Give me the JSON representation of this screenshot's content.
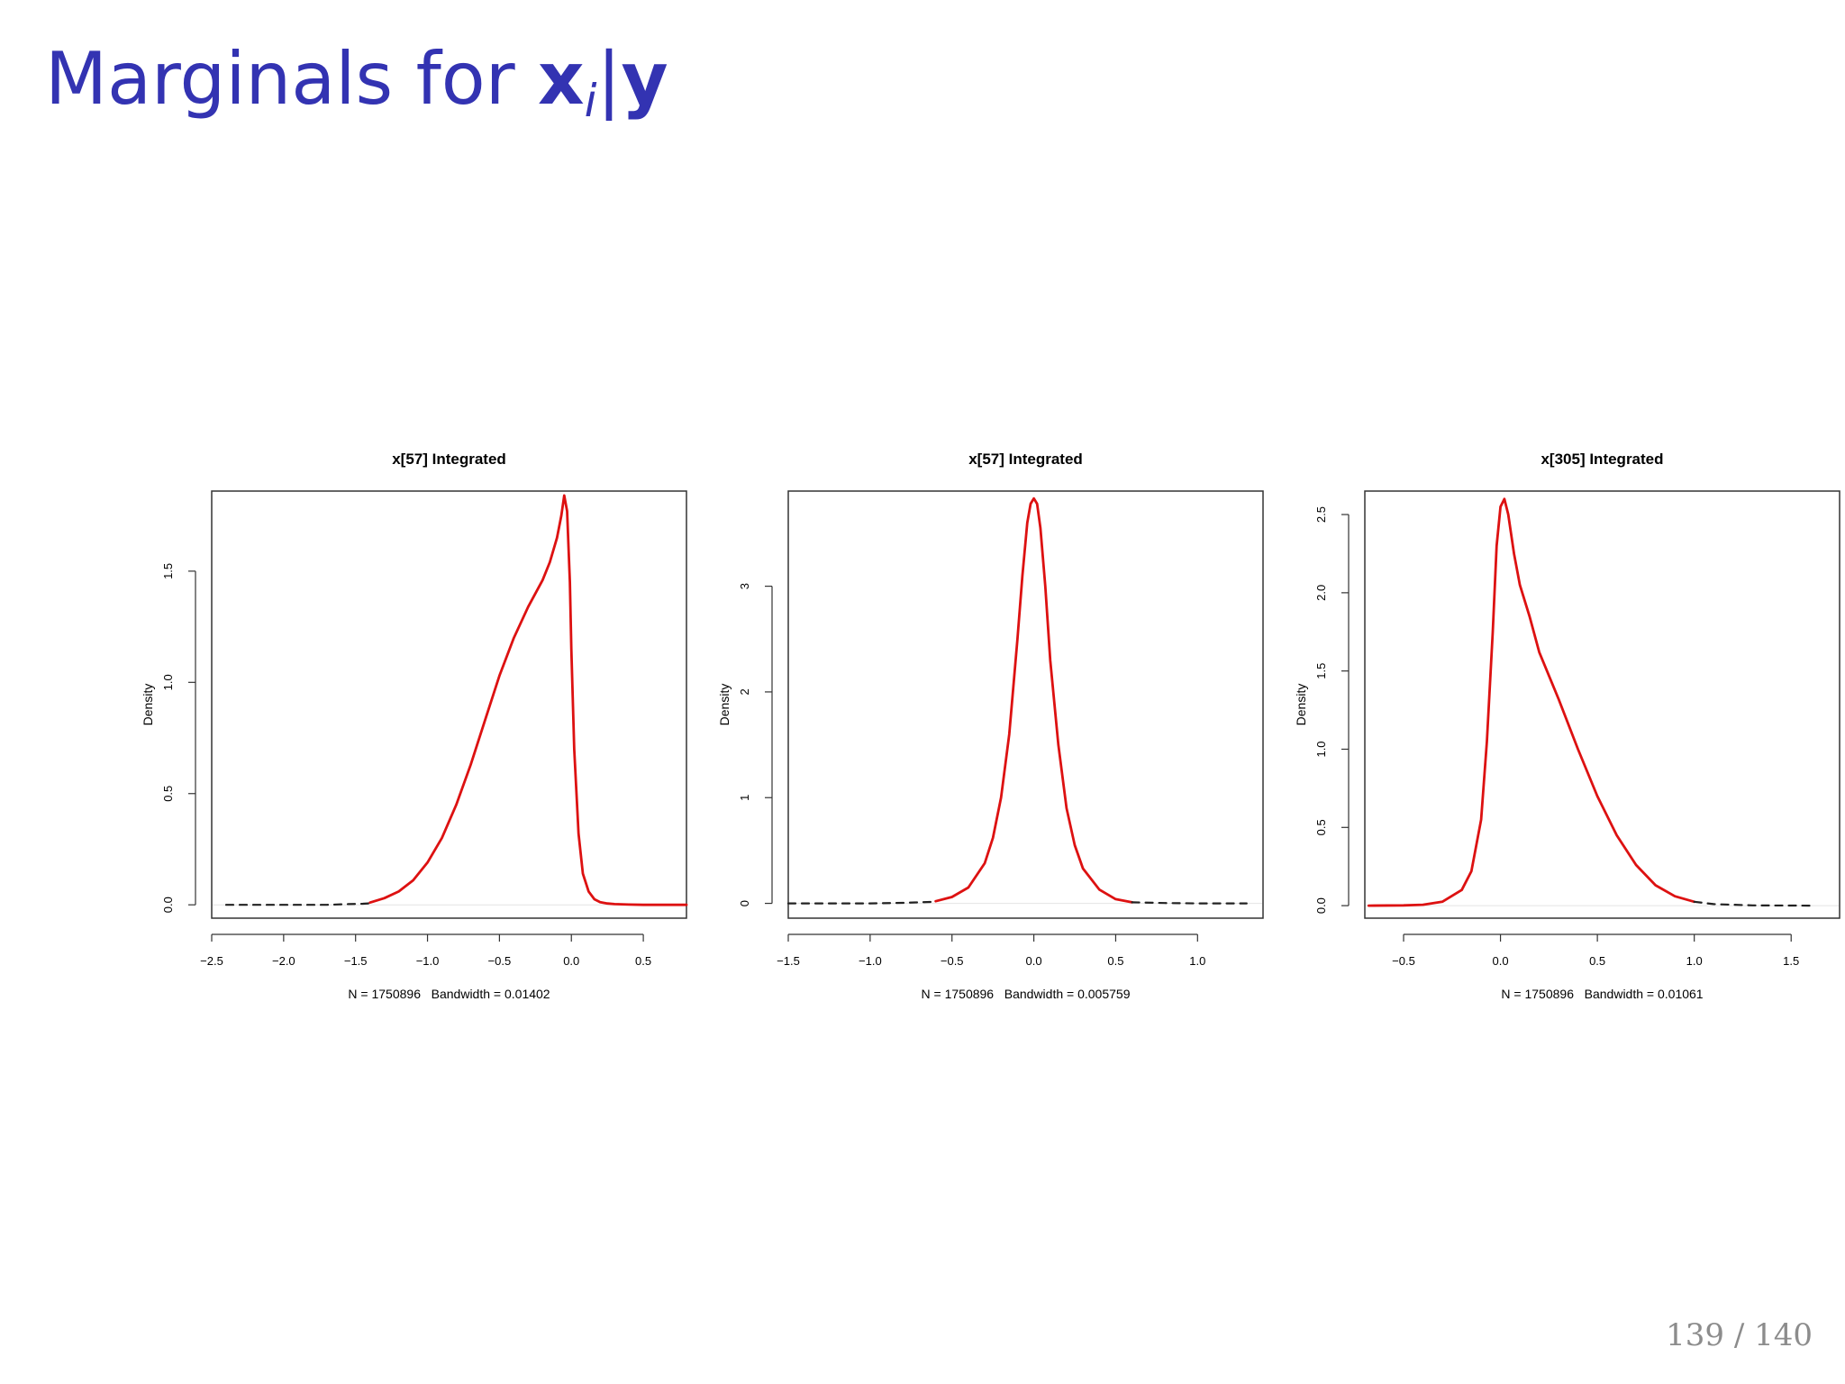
{
  "slide": {
    "title_prefix": "Marginals for ",
    "title_x": "x",
    "title_sub": "i",
    "title_bar": "|",
    "title_y": "y",
    "page": "139 / 140"
  },
  "chart_data": [
    {
      "type": "line",
      "title": "x[57] Integrated",
      "xlabel": "N = 1750896   Bandwidth = 0.01402",
      "ylabel": "Density",
      "xlim": [
        -2.5,
        0.8
      ],
      "ylim": [
        -0.06,
        1.86
      ],
      "xticks": [
        -2.5,
        -2.0,
        -1.5,
        -1.0,
        -0.5,
        0.0,
        0.5
      ],
      "xtick_labels": [
        "-2.5",
        "-2.0",
        "-1.5",
        "-1.0",
        "-0.5",
        "0.0",
        "0.5"
      ],
      "yticks": [
        0.0,
        0.5,
        1.0,
        1.5
      ],
      "ytick_labels": [
        "0.0",
        "0.5",
        "1.0",
        "1.5"
      ],
      "grid": false,
      "series": [
        {
          "style": "dashed",
          "color": "#222222",
          "x": [
            -2.4,
            -2.0,
            -1.7,
            -1.55,
            -1.45,
            -1.4
          ],
          "y": [
            0.0,
            0.0,
            0.0,
            0.003,
            0.005,
            0.007
          ]
        },
        {
          "style": "solid",
          "color": "#dd1111",
          "x": [
            -1.4,
            -1.3,
            -1.2,
            -1.1,
            -1.0,
            -0.9,
            -0.8,
            -0.7,
            -0.6,
            -0.5,
            -0.4,
            -0.3,
            -0.2,
            -0.15,
            -0.1,
            -0.07,
            -0.05,
            -0.03,
            -0.01,
            0.0,
            0.02,
            0.05,
            0.08,
            0.12,
            0.16,
            0.2,
            0.25,
            0.3,
            0.4,
            0.5,
            0.6,
            0.7,
            0.8
          ],
          "y": [
            0.01,
            0.03,
            0.06,
            0.11,
            0.19,
            0.3,
            0.45,
            0.63,
            0.83,
            1.03,
            1.2,
            1.34,
            1.46,
            1.54,
            1.65,
            1.75,
            1.84,
            1.77,
            1.45,
            1.15,
            0.7,
            0.32,
            0.14,
            0.06,
            0.025,
            0.012,
            0.006,
            0.003,
            0.001,
            0.0,
            0.0,
            0.0,
            0.0
          ]
        }
      ]
    },
    {
      "type": "line",
      "title": "x[57] Integrated",
      "xlabel": "N = 1750896   Bandwidth = 0.005759",
      "ylabel": "Density",
      "xlim": [
        -1.5,
        1.4
      ],
      "ylim": [
        -0.14,
        3.9
      ],
      "xticks": [
        -1.5,
        -1.0,
        -0.5,
        0.0,
        0.5,
        1.0
      ],
      "xtick_labels": [
        "-1.5",
        "-1.0",
        "-0.5",
        "0.0",
        "0.5",
        "1.0"
      ],
      "yticks": [
        0,
        1,
        2,
        3
      ],
      "ytick_labels": [
        "0",
        "1",
        "2",
        "3"
      ],
      "grid": false,
      "series": [
        {
          "style": "dashed",
          "color": "#222222",
          "x": [
            -1.5,
            -1.0,
            -0.8,
            -0.6
          ],
          "y": [
            0.0,
            0.0,
            0.005,
            0.015
          ]
        },
        {
          "style": "solid",
          "color": "#dd1111",
          "x": [
            -0.6,
            -0.5,
            -0.4,
            -0.3,
            -0.25,
            -0.2,
            -0.15,
            -0.1,
            -0.07,
            -0.04,
            -0.02,
            0.0,
            0.02,
            0.04,
            0.07,
            0.1,
            0.15,
            0.2,
            0.25,
            0.3,
            0.4,
            0.5,
            0.6
          ],
          "y": [
            0.02,
            0.06,
            0.15,
            0.38,
            0.62,
            1.0,
            1.6,
            2.5,
            3.1,
            3.6,
            3.78,
            3.83,
            3.78,
            3.55,
            3.0,
            2.3,
            1.5,
            0.9,
            0.55,
            0.33,
            0.13,
            0.04,
            0.01
          ]
        },
        {
          "style": "dashed",
          "color": "#222222",
          "x": [
            0.6,
            0.8,
            1.0,
            1.3
          ],
          "y": [
            0.01,
            0.003,
            0.0,
            0.0
          ]
        }
      ]
    },
    {
      "type": "line",
      "title": "x[305] Integrated",
      "xlabel": "N = 1750896   Bandwidth = 0.01061",
      "ylabel": "Density",
      "xlim": [
        -0.7,
        1.75
      ],
      "ylim": [
        -0.08,
        2.65
      ],
      "xticks": [
        -0.5,
        0.0,
        0.5,
        1.0,
        1.5
      ],
      "xtick_labels": [
        "-0.5",
        "0.0",
        "0.5",
        "1.0",
        "1.5"
      ],
      "yticks": [
        0.0,
        0.5,
        1.0,
        1.5,
        2.0,
        2.5
      ],
      "ytick_labels": [
        "0.0",
        "0.5",
        "1.0",
        "1.5",
        "2.0",
        "2.5"
      ],
      "grid": false,
      "series": [
        {
          "style": "solid",
          "color": "#dd1111",
          "x": [
            -0.68,
            -0.5,
            -0.4,
            -0.3,
            -0.2,
            -0.15,
            -0.1,
            -0.07,
            -0.04,
            -0.02,
            0.0,
            0.02,
            0.04,
            0.07,
            0.1,
            0.15,
            0.2,
            0.3,
            0.4,
            0.5,
            0.6,
            0.7,
            0.8,
            0.9,
            1.0
          ],
          "y": [
            0.0,
            0.002,
            0.006,
            0.025,
            0.1,
            0.22,
            0.55,
            1.05,
            1.75,
            2.3,
            2.55,
            2.6,
            2.5,
            2.25,
            2.05,
            1.85,
            1.62,
            1.32,
            1.0,
            0.7,
            0.45,
            0.26,
            0.13,
            0.06,
            0.025
          ]
        },
        {
          "style": "dashed",
          "color": "#222222",
          "x": [
            1.0,
            1.1,
            1.3,
            1.6
          ],
          "y": [
            0.025,
            0.01,
            0.002,
            0.0
          ]
        }
      ]
    }
  ]
}
